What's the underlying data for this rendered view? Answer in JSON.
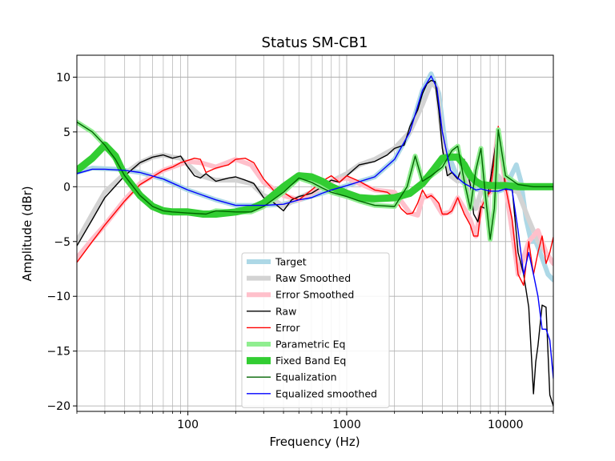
{
  "chart_data": {
    "type": "line",
    "title": "Status SM-CB1",
    "xlabel": "Frequency (Hz)",
    "ylabel": "Amplitude (dBr)",
    "xscale": "log",
    "xlim": [
      20,
      20000
    ],
    "ylim": [
      -20.5,
      12
    ],
    "xticks": [
      100,
      1000,
      10000
    ],
    "xtick_labels": [
      "100",
      "1000",
      "10000"
    ],
    "yticks": [
      -20,
      -15,
      -10,
      -5,
      0,
      5,
      10
    ],
    "ytick_labels": [
      "−20",
      "−15",
      "−10",
      "−5",
      "0",
      "5",
      "10"
    ],
    "grid": true,
    "legend_position": "lower-center",
    "series": [
      {
        "name": "Target",
        "color": "#add8e6",
        "role": "thick",
        "x": [
          20,
          25,
          35,
          50,
          70,
          100,
          150,
          200,
          300,
          400,
          500,
          700,
          1000,
          1500,
          2000,
          2500,
          3000,
          3400,
          3800,
          4200,
          5000,
          6000,
          7000,
          8000,
          9000,
          10000,
          11000,
          11700,
          12500,
          13500,
          14500,
          15500,
          17000,
          18500,
          20000
        ],
        "y": [
          1.3,
          1.7,
          1.6,
          1.3,
          0.7,
          -0.3,
          -1.2,
          -1.7,
          -1.7,
          -1.6,
          -1.2,
          -0.6,
          0.1,
          0.9,
          2.5,
          5.0,
          8.8,
          10.3,
          8.5,
          3.5,
          0.8,
          -0.2,
          -0.3,
          -0.4,
          -0.4,
          -0.2,
          1.2,
          2.0,
          0.5,
          -3.0,
          -5.0,
          -5.0,
          -6.5,
          -8.0,
          -8.5
        ]
      },
      {
        "name": "Raw Smoothed",
        "color": "#d3d3d3",
        "role": "thick",
        "x": [
          20,
          25,
          30,
          40,
          50,
          60,
          70,
          80,
          90,
          100,
          120,
          150,
          200,
          250,
          300,
          350,
          400,
          500,
          600,
          700,
          800,
          1000,
          1200,
          1500,
          2000,
          2500,
          3000,
          3400,
          3700,
          4000,
          4500,
          5000,
          5500,
          6000,
          6500,
          7000,
          8000,
          9000,
          10000,
          12000,
          14000,
          16000,
          18000,
          20000
        ],
        "y": [
          -5.0,
          -2.5,
          -0.5,
          1.2,
          2.2,
          2.7,
          2.9,
          2.7,
          2.6,
          2.0,
          1.0,
          0.6,
          0.6,
          0.3,
          -0.8,
          -1.2,
          -1.8,
          -1.0,
          -0.5,
          0.1,
          0.5,
          1.2,
          2.0,
          2.5,
          3.5,
          5.0,
          7.5,
          9.5,
          9.0,
          4.5,
          1.0,
          0.5,
          1.5,
          0.0,
          -2.0,
          -0.5,
          0.0,
          1.0,
          0.0,
          -0.5,
          -3.0,
          -5.0,
          -6.0,
          -7.0
        ]
      },
      {
        "name": "Error Smoothed",
        "color": "#ffc0cb",
        "role": "thick",
        "x": [
          20,
          25,
          30,
          40,
          50,
          70,
          100,
          120,
          150,
          200,
          250,
          300,
          400,
          500,
          600,
          700,
          800,
          1000,
          1200,
          1500,
          2000,
          2500,
          2800,
          3000,
          3400,
          4000,
          4500,
          5000,
          5500,
          6000,
          6500,
          7000,
          7500,
          8000,
          9000,
          10000,
          11000,
          12000,
          14000,
          16000,
          18000,
          20000
        ],
        "y": [
          -6.5,
          -4.8,
          -3.5,
          -1.2,
          0.3,
          1.5,
          2.3,
          2.2,
          1.8,
          2.5,
          2.0,
          0.4,
          -0.8,
          -1.2,
          -0.6,
          0.0,
          0.5,
          0.8,
          0.3,
          -0.3,
          -0.5,
          -2.4,
          -2.6,
          -1.0,
          -0.8,
          -2.5,
          -2.3,
          -1.0,
          -2.0,
          -3.0,
          -4.5,
          -2.0,
          -1.0,
          -0.5,
          5.2,
          0.0,
          -4.0,
          -8.0,
          -5.0,
          -4.0,
          -6.0,
          -7.0
        ]
      },
      {
        "name": "Raw",
        "color": "#000000",
        "role": "thin",
        "x": [
          20,
          25,
          30,
          40,
          50,
          60,
          70,
          80,
          90,
          100,
          110,
          120,
          130,
          150,
          180,
          200,
          230,
          260,
          300,
          350,
          400,
          450,
          500,
          600,
          700,
          800,
          900,
          1000,
          1200,
          1500,
          1800,
          2000,
          2300,
          2500,
          2800,
          3000,
          3200,
          3400,
          3600,
          3800,
          4000,
          4300,
          4600,
          5000,
          5500,
          6000,
          6300,
          6700,
          7000,
          7500,
          8000,
          8500,
          9000,
          9500,
          10000,
          11000,
          12000,
          13000,
          14000,
          14500,
          15000,
          15500,
          16000,
          17000,
          18000,
          19000,
          20000
        ],
        "y": [
          -5.4,
          -3.0,
          -1.0,
          1.0,
          2.2,
          2.7,
          2.9,
          2.6,
          2.8,
          1.8,
          1.0,
          0.8,
          1.2,
          0.5,
          0.8,
          0.9,
          0.6,
          0.3,
          -1.0,
          -1.5,
          -2.2,
          -1.2,
          -0.9,
          -0.6,
          0.0,
          0.6,
          0.4,
          1.0,
          2.0,
          2.3,
          2.9,
          3.5,
          3.8,
          5.5,
          7.0,
          8.5,
          9.4,
          9.7,
          9.6,
          7.0,
          3.5,
          1.0,
          1.3,
          0.7,
          2.5,
          0.2,
          -2.5,
          -3.2,
          -1.8,
          -2.0,
          0.5,
          3.0,
          5.4,
          3.0,
          -0.3,
          -0.1,
          -6.0,
          -8.0,
          -11.0,
          -15.0,
          -18.9,
          -16.0,
          -14.5,
          -10.8,
          -11.0,
          -19.0,
          -20.0
        ]
      },
      {
        "name": "Error",
        "color": "#ff0000",
        "role": "thin",
        "x": [
          20,
          25,
          30,
          40,
          50,
          60,
          70,
          80,
          90,
          100,
          110,
          120,
          130,
          150,
          180,
          200,
          230,
          260,
          300,
          350,
          400,
          450,
          500,
          600,
          700,
          800,
          900,
          1000,
          1200,
          1500,
          1800,
          2000,
          2200,
          2400,
          2600,
          2800,
          3000,
          3200,
          3400,
          3600,
          3800,
          4000,
          4300,
          4600,
          5000,
          5500,
          6000,
          6300,
          6700,
          7000,
          7500,
          8000,
          8500,
          9000,
          9500,
          10000,
          11000,
          12000,
          13000,
          14000,
          15000,
          16000,
          17000,
          18000,
          19000,
          20000
        ],
        "y": [
          -6.9,
          -5.0,
          -3.5,
          -1.3,
          0.2,
          0.9,
          1.5,
          1.8,
          2.2,
          2.4,
          2.6,
          2.5,
          1.3,
          1.7,
          2.0,
          2.5,
          2.6,
          2.2,
          0.7,
          -0.4,
          -0.5,
          -1.0,
          -1.2,
          -0.3,
          0.5,
          1.0,
          0.4,
          1.0,
          0.5,
          -0.3,
          -0.5,
          -1.0,
          -2.0,
          -2.5,
          -2.4,
          -1.5,
          -0.3,
          -1.0,
          -0.8,
          -1.1,
          -1.5,
          -2.5,
          -2.5,
          -2.2,
          -1.0,
          -2.5,
          -3.5,
          -4.5,
          -4.5,
          -2.0,
          -1.0,
          -0.5,
          2.5,
          5.5,
          4.0,
          0.0,
          -3.0,
          -8.0,
          -9.0,
          -5.0,
          -8.0,
          -6.0,
          -4.5,
          -7.0,
          -6.0,
          -4.6
        ]
      },
      {
        "name": "Parametric Eq",
        "color": "#90ee90",
        "role": "thick",
        "x": [
          20,
          25,
          30,
          35,
          40,
          50,
          60,
          70,
          80,
          100,
          130,
          150,
          200,
          250,
          300,
          400,
          500,
          600,
          700,
          800,
          1000,
          1200,
          1500,
          2000,
          2400,
          2700,
          3000,
          3400,
          4000,
          4600,
          5000,
          5500,
          6000,
          6500,
          7000,
          7500,
          8000,
          8500,
          9000,
          10000,
          12000,
          15000,
          20000
        ],
        "y": [
          5.9,
          5.0,
          3.8,
          2.5,
          1.0,
          -0.8,
          -1.8,
          -2.2,
          -2.3,
          -2.4,
          -2.5,
          -2.2,
          -2.3,
          -2.3,
          -1.8,
          -0.5,
          0.8,
          0.4,
          -0.1,
          -0.5,
          -0.9,
          -1.3,
          -1.7,
          -1.8,
          0.0,
          2.8,
          0.5,
          1.0,
          1.8,
          3.3,
          3.7,
          0.5,
          -2.0,
          1.5,
          3.5,
          -1.0,
          -4.8,
          -2.0,
          5.2,
          1.0,
          0.2,
          0.0,
          0.0
        ]
      },
      {
        "name": "Fixed Band Eq",
        "color": "#32cd32",
        "role": "thick",
        "x": [
          20,
          25,
          30,
          35,
          40,
          50,
          60,
          70,
          80,
          100,
          125,
          150,
          200,
          250,
          300,
          400,
          500,
          600,
          700,
          800,
          1000,
          1200,
          1500,
          2000,
          2500,
          3000,
          3500,
          4000,
          4500,
          5000,
          5500,
          6000,
          6500,
          7000,
          8000,
          9000,
          10000,
          12000,
          15000,
          20000
        ],
        "y": [
          1.5,
          2.6,
          3.8,
          2.8,
          1.0,
          -0.8,
          -1.8,
          -2.2,
          -2.3,
          -2.3,
          -2.5,
          -2.5,
          -2.3,
          -2.0,
          -1.5,
          0.0,
          1.0,
          0.9,
          0.5,
          0.0,
          -0.6,
          -1.0,
          -1.1,
          -1.0,
          -0.6,
          0.3,
          1.5,
          2.6,
          2.7,
          2.7,
          2.0,
          1.0,
          0.5,
          0.2,
          0.1,
          0.1,
          0.1,
          0.0,
          0.0,
          0.0
        ]
      },
      {
        "name": "Equalization",
        "color": "#006400",
        "role": "thin",
        "x": [
          20,
          25,
          30,
          35,
          40,
          50,
          60,
          70,
          80,
          100,
          130,
          150,
          200,
          250,
          300,
          400,
          500,
          600,
          700,
          800,
          1000,
          1200,
          1500,
          2000,
          2400,
          2700,
          3000,
          3400,
          4000,
          4600,
          5000,
          5500,
          6000,
          6500,
          7000,
          7500,
          8000,
          8500,
          9000,
          10000,
          12000,
          15000,
          20000
        ],
        "y": [
          5.9,
          5.0,
          3.8,
          2.5,
          1.0,
          -0.8,
          -1.8,
          -2.2,
          -2.3,
          -2.4,
          -2.5,
          -2.2,
          -2.3,
          -2.3,
          -1.8,
          -0.5,
          0.8,
          0.4,
          -0.1,
          -0.5,
          -0.9,
          -1.3,
          -1.7,
          -1.8,
          0.0,
          2.8,
          0.5,
          1.0,
          1.8,
          3.3,
          3.7,
          0.5,
          -2.0,
          1.5,
          3.5,
          -1.0,
          -4.8,
          -2.0,
          5.2,
          1.0,
          0.2,
          0.0,
          0.0
        ]
      },
      {
        "name": "Equalized smoothed",
        "color": "#0000ff",
        "role": "thin",
        "x": [
          20,
          25,
          30,
          40,
          50,
          70,
          100,
          150,
          200,
          300,
          400,
          500,
          600,
          700,
          800,
          1000,
          1500,
          2000,
          2500,
          3000,
          3400,
          3700,
          4000,
          4500,
          5000,
          5500,
          6000,
          6500,
          7000,
          8000,
          9000,
          10000,
          11000,
          12000,
          13000,
          14000,
          15000,
          16000,
          17000,
          18000,
          19000,
          20000
        ],
        "y": [
          1.2,
          1.6,
          1.6,
          1.5,
          1.3,
          0.7,
          -0.3,
          -1.2,
          -1.7,
          -1.7,
          -1.6,
          -1.2,
          -1.0,
          -0.6,
          -0.3,
          0.1,
          0.9,
          2.5,
          5.0,
          8.8,
          10.1,
          9.0,
          5.0,
          1.5,
          0.8,
          0.3,
          0.0,
          -0.3,
          -0.2,
          -0.4,
          -0.4,
          -0.2,
          -0.3,
          -4.0,
          -8.0,
          -6.0,
          -8.0,
          -10.0,
          -13.0,
          -13.0,
          -14.0,
          -17.5
        ]
      }
    ],
    "legend": [
      "Target",
      "Raw Smoothed",
      "Error Smoothed",
      "Raw",
      "Error",
      "Parametric Eq",
      "Fixed Band Eq",
      "Equalization",
      "Equalized smoothed"
    ]
  }
}
